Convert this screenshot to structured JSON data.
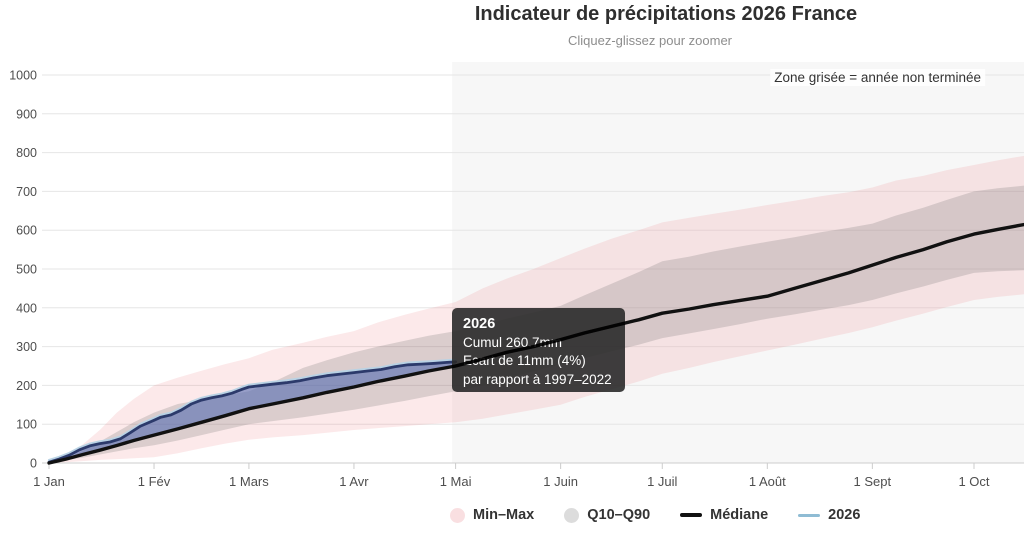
{
  "header": {
    "title": "Indicateur de précipitations 2026 France",
    "subtitle": "Cliquez-glissez pour zoomer"
  },
  "annotations": {
    "zone_note": "Zone grisée = année non terminée"
  },
  "tooltip": {
    "title": "2026",
    "lines": [
      "Cumul 260.7mm",
      "Ecart de 11mm (4%)",
      "par rapport à 1997–2022"
    ]
  },
  "legend": {
    "items": [
      {
        "label": "Min–Max",
        "color": "#f9dfe1"
      },
      {
        "label": "Q10–Q90",
        "color": "#dcdcdc"
      },
      {
        "label": "Médiane",
        "color": "#111111"
      },
      {
        "label": "2026",
        "color": "#8fbcd4"
      }
    ]
  },
  "chart_data": {
    "type": "area",
    "title": "Indicateur de précipitations 2026 France",
    "subtitle": "Cliquez-glissez pour zoomer",
    "xlabel": "",
    "ylabel": "",
    "unit": "mm",
    "ylim": [
      0,
      1000
    ],
    "y_ticks": [
      0,
      100,
      200,
      300,
      400,
      500,
      600,
      700,
      800,
      900,
      1000
    ],
    "x_ticks": [
      {
        "day": 0,
        "label": "1 Jan"
      },
      {
        "day": 31,
        "label": "1 Fév"
      },
      {
        "day": 59,
        "label": "1 Mars"
      },
      {
        "day": 90,
        "label": "1 Avr"
      },
      {
        "day": 120,
        "label": "1 Mai"
      },
      {
        "day": 151,
        "label": "1 Juin"
      },
      {
        "day": 181,
        "label": "1 Juil"
      },
      {
        "day": 212,
        "label": "1 Août"
      },
      {
        "day": 243,
        "label": "1 Sept"
      },
      {
        "day": 273,
        "label": "1 Oct"
      }
    ],
    "x_max_day": 288,
    "unfinished_zone_start_day": 119,
    "reference_period": "1997–2022",
    "colors": {
      "gridline": "#e6e6e6",
      "axis_line": "#cccccc",
      "tick": "#cccccc",
      "unfinished_zone": "#f7f7f7"
    },
    "series": [
      {
        "name": "Min–Max",
        "type": "arearange",
        "color": "rgba(237,107,113,0.15)",
        "points_high": [
          [
            0,
            0
          ],
          [
            6,
            25
          ],
          [
            10,
            48
          ],
          [
            15,
            85
          ],
          [
            20,
            130
          ],
          [
            25,
            165
          ],
          [
            31,
            200
          ],
          [
            38,
            220
          ],
          [
            45,
            238
          ],
          [
            52,
            255
          ],
          [
            59,
            270
          ],
          [
            66,
            292
          ],
          [
            75,
            310
          ],
          [
            82,
            325
          ],
          [
            90,
            340
          ],
          [
            97,
            362
          ],
          [
            105,
            382
          ],
          [
            112,
            398
          ],
          [
            120,
            415
          ],
          [
            128,
            450
          ],
          [
            135,
            475
          ],
          [
            143,
            500
          ],
          [
            151,
            528
          ],
          [
            158,
            552
          ],
          [
            166,
            578
          ],
          [
            174,
            600
          ],
          [
            181,
            620
          ],
          [
            189,
            632
          ],
          [
            196,
            642
          ],
          [
            204,
            653
          ],
          [
            212,
            665
          ],
          [
            220,
            676
          ],
          [
            228,
            688
          ],
          [
            236,
            698
          ],
          [
            243,
            710
          ],
          [
            250,
            728
          ],
          [
            258,
            740
          ],
          [
            265,
            755
          ],
          [
            273,
            768
          ],
          [
            280,
            780
          ],
          [
            288,
            792
          ]
        ],
        "points_low": [
          [
            0,
            0
          ],
          [
            5,
            2
          ],
          [
            10,
            5
          ],
          [
            15,
            8
          ],
          [
            20,
            10
          ],
          [
            25,
            12
          ],
          [
            31,
            15
          ],
          [
            38,
            25
          ],
          [
            45,
            38
          ],
          [
            52,
            50
          ],
          [
            59,
            60
          ],
          [
            66,
            66
          ],
          [
            75,
            72
          ],
          [
            82,
            78
          ],
          [
            90,
            85
          ],
          [
            97,
            90
          ],
          [
            105,
            95
          ],
          [
            112,
            100
          ],
          [
            120,
            105
          ],
          [
            128,
            114
          ],
          [
            135,
            125
          ],
          [
            143,
            137
          ],
          [
            151,
            150
          ],
          [
            158,
            170
          ],
          [
            166,
            190
          ],
          [
            174,
            210
          ],
          [
            181,
            230
          ],
          [
            189,
            245
          ],
          [
            196,
            260
          ],
          [
            204,
            275
          ],
          [
            212,
            290
          ],
          [
            220,
            305
          ],
          [
            228,
            320
          ],
          [
            236,
            335
          ],
          [
            243,
            350
          ],
          [
            250,
            367
          ],
          [
            258,
            385
          ],
          [
            265,
            402
          ],
          [
            273,
            420
          ],
          [
            280,
            428
          ],
          [
            288,
            435
          ]
        ]
      },
      {
        "name": "Q10–Q90",
        "type": "arearange",
        "color": "rgba(105,105,105,0.22)",
        "points_high": [
          [
            0,
            0
          ],
          [
            6,
            15
          ],
          [
            10,
            32
          ],
          [
            15,
            55
          ],
          [
            20,
            80
          ],
          [
            25,
            105
          ],
          [
            31,
            130
          ],
          [
            38,
            152
          ],
          [
            45,
            163
          ],
          [
            52,
            174
          ],
          [
            59,
            185
          ],
          [
            66,
            208
          ],
          [
            75,
            245
          ],
          [
            82,
            265
          ],
          [
            90,
            285
          ],
          [
            97,
            300
          ],
          [
            105,
            315
          ],
          [
            112,
            328
          ],
          [
            120,
            340
          ],
          [
            128,
            355
          ],
          [
            135,
            372
          ],
          [
            143,
            388
          ],
          [
            151,
            405
          ],
          [
            158,
            432
          ],
          [
            166,
            462
          ],
          [
            174,
            492
          ],
          [
            181,
            520
          ],
          [
            189,
            532
          ],
          [
            196,
            545
          ],
          [
            204,
            558
          ],
          [
            212,
            570
          ],
          [
            220,
            582
          ],
          [
            228,
            595
          ],
          [
            236,
            606
          ],
          [
            243,
            617
          ],
          [
            250,
            638
          ],
          [
            258,
            658
          ],
          [
            265,
            678
          ],
          [
            273,
            700
          ],
          [
            280,
            708
          ],
          [
            288,
            715
          ]
        ],
        "points_low": [
          [
            0,
            0
          ],
          [
            5,
            7
          ],
          [
            10,
            14
          ],
          [
            15,
            22
          ],
          [
            20,
            30
          ],
          [
            25,
            38
          ],
          [
            31,
            46
          ],
          [
            38,
            58
          ],
          [
            45,
            72
          ],
          [
            52,
            86
          ],
          [
            59,
            100
          ],
          [
            66,
            108
          ],
          [
            75,
            118
          ],
          [
            82,
            127
          ],
          [
            90,
            137
          ],
          [
            97,
            148
          ],
          [
            105,
            160
          ],
          [
            112,
            172
          ],
          [
            120,
            185
          ],
          [
            128,
            200
          ],
          [
            135,
            218
          ],
          [
            143,
            236
          ],
          [
            151,
            255
          ],
          [
            158,
            270
          ],
          [
            166,
            288
          ],
          [
            174,
            305
          ],
          [
            181,
            322
          ],
          [
            189,
            334
          ],
          [
            196,
            345
          ],
          [
            204,
            358
          ],
          [
            212,
            372
          ],
          [
            220,
            383
          ],
          [
            228,
            395
          ],
          [
            236,
            407
          ],
          [
            243,
            420
          ],
          [
            250,
            437
          ],
          [
            258,
            455
          ],
          [
            265,
            472
          ],
          [
            273,
            490
          ],
          [
            280,
            494
          ],
          [
            288,
            497
          ]
        ]
      },
      {
        "name": "Médiane",
        "type": "line",
        "color": "#111111",
        "points": [
          [
            0,
            0
          ],
          [
            5,
            10
          ],
          [
            10,
            22
          ],
          [
            15,
            33
          ],
          [
            20,
            45
          ],
          [
            25,
            58
          ],
          [
            31,
            72
          ],
          [
            38,
            88
          ],
          [
            45,
            105
          ],
          [
            52,
            122
          ],
          [
            59,
            140
          ],
          [
            66,
            152
          ],
          [
            75,
            168
          ],
          [
            82,
            182
          ],
          [
            90,
            196
          ],
          [
            97,
            210
          ],
          [
            105,
            224
          ],
          [
            112,
            237
          ],
          [
            120,
            250
          ],
          [
            128,
            268
          ],
          [
            135,
            285
          ],
          [
            143,
            300
          ],
          [
            151,
            318
          ],
          [
            158,
            335
          ],
          [
            166,
            352
          ],
          [
            174,
            369
          ],
          [
            181,
            386
          ],
          [
            189,
            397
          ],
          [
            196,
            408
          ],
          [
            204,
            419
          ],
          [
            212,
            430
          ],
          [
            220,
            450
          ],
          [
            228,
            470
          ],
          [
            236,
            490
          ],
          [
            243,
            510
          ],
          [
            250,
            530
          ],
          [
            258,
            550
          ],
          [
            265,
            570
          ],
          [
            273,
            590
          ],
          [
            280,
            602
          ],
          [
            288,
            615
          ]
        ]
      },
      {
        "name": "2026",
        "type": "line",
        "color": "#2c3a6b",
        "color_light": "#b9d2e4",
        "fill": "rgba(78,104,176,0.58)",
        "last_value": 260.7,
        "ecart_mm": 11,
        "ecart_pct": 4,
        "points": [
          [
            0,
            2
          ],
          [
            3,
            10
          ],
          [
            6,
            20
          ],
          [
            9,
            34
          ],
          [
            12,
            44
          ],
          [
            15,
            50
          ],
          [
            18,
            54
          ],
          [
            21,
            62
          ],
          [
            24,
            78
          ],
          [
            27,
            95
          ],
          [
            31,
            110
          ],
          [
            33,
            118
          ],
          [
            36,
            124
          ],
          [
            39,
            136
          ],
          [
            42,
            152
          ],
          [
            45,
            162
          ],
          [
            48,
            168
          ],
          [
            51,
            173
          ],
          [
            54,
            180
          ],
          [
            57,
            190
          ],
          [
            59,
            196
          ],
          [
            62,
            199
          ],
          [
            66,
            203
          ],
          [
            70,
            207
          ],
          [
            74,
            212
          ],
          [
            78,
            219
          ],
          [
            82,
            225
          ],
          [
            86,
            229
          ],
          [
            90,
            233
          ],
          [
            94,
            237
          ],
          [
            98,
            241
          ],
          [
            102,
            248
          ],
          [
            106,
            253
          ],
          [
            110,
            255
          ],
          [
            114,
            257
          ],
          [
            117,
            259
          ],
          [
            120,
            260.7
          ]
        ]
      }
    ]
  }
}
